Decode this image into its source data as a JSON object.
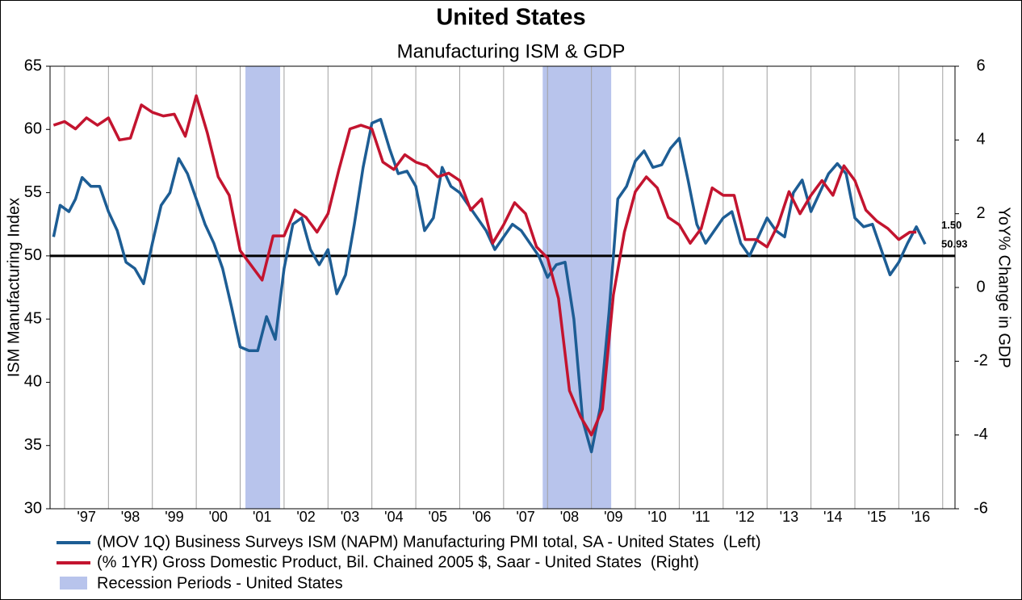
{
  "chart_data": {
    "type": "line",
    "title": "United States",
    "subtitle": "Manufacturing ISM & GDP",
    "y_label": "ISM Manufacturing Index",
    "y2_label": "YoY% Change in GDP",
    "xlim": [
      1996.67,
      2017.28
    ],
    "xticks": [
      {
        "value": 1997.5,
        "label": "'97"
      },
      {
        "value": 1998.5,
        "label": "'98"
      },
      {
        "value": 1999.5,
        "label": "'99"
      },
      {
        "value": 2000.5,
        "label": "'00"
      },
      {
        "value": 2001.5,
        "label": "'01"
      },
      {
        "value": 2002.5,
        "label": "'02"
      },
      {
        "value": 2003.5,
        "label": "'03"
      },
      {
        "value": 2004.5,
        "label": "'04"
      },
      {
        "value": 2005.5,
        "label": "'05"
      },
      {
        "value": 2006.5,
        "label": "'06"
      },
      {
        "value": 2007.5,
        "label": "'07"
      },
      {
        "value": 2008.5,
        "label": "'08"
      },
      {
        "value": 2009.5,
        "label": "'09"
      },
      {
        "value": 2010.5,
        "label": "'10"
      },
      {
        "value": 2011.5,
        "label": "'11"
      },
      {
        "value": 2012.5,
        "label": "'12"
      },
      {
        "value": 2013.5,
        "label": "'13"
      },
      {
        "value": 2014.5,
        "label": "'14"
      },
      {
        "value": 2015.5,
        "label": "'15"
      },
      {
        "value": 2016.5,
        "label": "'16"
      }
    ],
    "ylim": [
      30,
      65
    ],
    "yticks": [
      30,
      35,
      40,
      45,
      50,
      55,
      60,
      65
    ],
    "y2lim": [
      -6,
      6
    ],
    "y2ticks": [
      -6,
      -4,
      -2,
      0,
      2,
      4,
      6
    ],
    "grid": true,
    "reference_line": 50,
    "recession_label": "Recession Periods - United States",
    "recession_color": "#b8c4ec",
    "recessions": [
      [
        2001.12,
        2001.91
      ],
      [
        2007.89,
        2009.45
      ]
    ],
    "series": [
      {
        "name": "(MOV 1Q) Business Surveys ISM (NAPM) Manufacturing PMI total, SA - United States  (Left)",
        "color": "#1d5d94",
        "x": [
          1996.75,
          1996.9,
          1997.1,
          1997.25,
          1997.4,
          1997.6,
          1997.8,
          1998.0,
          1998.2,
          1998.4,
          1998.6,
          1998.8,
          1999.0,
          1999.2,
          1999.4,
          1999.6,
          1999.8,
          2000.0,
          2000.2,
          2000.4,
          2000.6,
          2000.8,
          2001.0,
          2001.2,
          2001.4,
          2001.6,
          2001.8,
          2002.0,
          2002.2,
          2002.4,
          2002.6,
          2002.8,
          2003.0,
          2003.2,
          2003.4,
          2003.6,
          2003.8,
          2004.0,
          2004.2,
          2004.4,
          2004.6,
          2004.8,
          2005.0,
          2005.2,
          2005.4,
          2005.6,
          2005.8,
          2006.0,
          2006.2,
          2006.4,
          2006.6,
          2006.8,
          2007.0,
          2007.2,
          2007.4,
          2007.6,
          2007.8,
          2008.0,
          2008.2,
          2008.4,
          2008.6,
          2008.8,
          2009.0,
          2009.2,
          2009.4,
          2009.6,
          2009.8,
          2010.0,
          2010.2,
          2010.4,
          2010.6,
          2010.8,
          2011.0,
          2011.2,
          2011.4,
          2011.6,
          2011.8,
          2012.0,
          2012.2,
          2012.4,
          2012.6,
          2012.8,
          2013.0,
          2013.2,
          2013.4,
          2013.6,
          2013.8,
          2014.0,
          2014.2,
          2014.4,
          2014.6,
          2014.8,
          2015.0,
          2015.2,
          2015.4,
          2015.6,
          2015.8,
          2016.0,
          2016.2,
          2016.4,
          2016.6
        ],
        "values": [
          51.5,
          54,
          53.5,
          54.5,
          56.2,
          55.5,
          55.5,
          53.5,
          52,
          49.5,
          49,
          47.8,
          51,
          54,
          55,
          57.7,
          56.5,
          54.5,
          52.5,
          51,
          49,
          46,
          42.8,
          42.5,
          42.5,
          45.2,
          43.4,
          49,
          52.5,
          53,
          50.5,
          49.3,
          50.5,
          47,
          48.5,
          52.5,
          57,
          60.5,
          60.8,
          58.5,
          56.5,
          56.7,
          55.5,
          52,
          53,
          57,
          55.5,
          55,
          54,
          53,
          52,
          50.5,
          51.5,
          52.5,
          52,
          51,
          50,
          48.3,
          49.3,
          49.5,
          45,
          37,
          34.5,
          38,
          45.5,
          54.5,
          55.5,
          57.5,
          58.3,
          57,
          57.2,
          58.5,
          59.3,
          56,
          52.5,
          51,
          52,
          53,
          53.5,
          51,
          50,
          51.5,
          53,
          52,
          51.5,
          55,
          56,
          53.5,
          55,
          56.5,
          57.3,
          56.5,
          53,
          52.3,
          52.5,
          50.5,
          48.5,
          49.5,
          51,
          52.3,
          50.93
        ],
        "value_labels": [
          null,
          null,
          null,
          null,
          null,
          null,
          null,
          null,
          null,
          null,
          null,
          null,
          null,
          null,
          null,
          null,
          null,
          null,
          null,
          null,
          null,
          null,
          null,
          null,
          null,
          null,
          null,
          null,
          null,
          null,
          null,
          null,
          null,
          null,
          null,
          null,
          null,
          null,
          null,
          null,
          null,
          null,
          null,
          null,
          null,
          null,
          null,
          null,
          null,
          null,
          null,
          null,
          null,
          null,
          null,
          null,
          null,
          null,
          null,
          null,
          null,
          null,
          null,
          null,
          null,
          null,
          null,
          null,
          null,
          null,
          null,
          null,
          null,
          null,
          null,
          null,
          null,
          null,
          null,
          null,
          null,
          null,
          null,
          null,
          null,
          null,
          null,
          null,
          null,
          null,
          null,
          null,
          null,
          null,
          null,
          null,
          null,
          null,
          null,
          null,
          "50.93"
        ]
      },
      {
        "name": "(% 1YR) Gross Domestic Product, Bil. Chained 2005 $, Saar - United States  (Right)",
        "color": "#c3142f",
        "axis": "y2",
        "x": [
          1996.75,
          1997.0,
          1997.25,
          1997.5,
          1997.75,
          1998.0,
          1998.25,
          1998.5,
          1998.75,
          1999.0,
          1999.25,
          1999.5,
          1999.75,
          2000.0,
          2000.25,
          2000.5,
          2000.75,
          2001.0,
          2001.25,
          2001.5,
          2001.75,
          2002.0,
          2002.25,
          2002.5,
          2002.75,
          2003.0,
          2003.25,
          2003.5,
          2003.75,
          2004.0,
          2004.25,
          2004.5,
          2004.75,
          2005.0,
          2005.25,
          2005.5,
          2005.75,
          2006.0,
          2006.25,
          2006.5,
          2006.75,
          2007.0,
          2007.25,
          2007.5,
          2007.75,
          2008.0,
          2008.25,
          2008.5,
          2008.75,
          2009.0,
          2009.25,
          2009.5,
          2009.75,
          2010.0,
          2010.25,
          2010.5,
          2010.75,
          2011.0,
          2011.25,
          2011.5,
          2011.75,
          2012.0,
          2012.25,
          2012.5,
          2012.75,
          2013.0,
          2013.25,
          2013.5,
          2013.75,
          2014.0,
          2014.25,
          2014.5,
          2014.75,
          2015.0,
          2015.25,
          2015.5,
          2015.75,
          2016.0,
          2016.25,
          2016.4
        ],
        "values": [
          4.4,
          4.5,
          4.3,
          4.6,
          4.4,
          4.6,
          4.0,
          4.05,
          4.95,
          4.75,
          4.65,
          4.7,
          4.1,
          5.2,
          4.2,
          3.0,
          2.5,
          1.0,
          0.6,
          0.2,
          1.4,
          1.4,
          2.1,
          1.9,
          1.5,
          2.0,
          3.2,
          4.3,
          4.4,
          4.3,
          3.4,
          3.2,
          3.6,
          3.4,
          3.3,
          3.0,
          3.1,
          2.9,
          2.1,
          2.4,
          1.2,
          1.7,
          2.3,
          2.0,
          1.1,
          0.8,
          -0.3,
          -2.8,
          -3.5,
          -4.0,
          -3.3,
          -0.2,
          1.5,
          2.6,
          3.0,
          2.7,
          1.9,
          1.7,
          1.2,
          1.6,
          2.7,
          2.5,
          2.5,
          1.3,
          1.3,
          1.1,
          1.7,
          2.6,
          2.0,
          2.5,
          2.9,
          2.5,
          3.3,
          2.9,
          2.1,
          1.8,
          1.6,
          1.3,
          1.5,
          1.5
        ],
        "value_labels": [
          null,
          null,
          null,
          null,
          null,
          null,
          null,
          null,
          null,
          null,
          null,
          null,
          null,
          null,
          null,
          null,
          null,
          null,
          null,
          null,
          null,
          null,
          null,
          null,
          null,
          null,
          null,
          null,
          null,
          null,
          null,
          null,
          null,
          null,
          null,
          null,
          null,
          null,
          null,
          null,
          null,
          null,
          null,
          null,
          null,
          null,
          null,
          null,
          null,
          null,
          null,
          null,
          null,
          null,
          null,
          null,
          null,
          null,
          null,
          null,
          null,
          null,
          null,
          null,
          null,
          null,
          null,
          null,
          null,
          null,
          null,
          null,
          null,
          null,
          null,
          null,
          null,
          null,
          null,
          "1.50"
        ]
      }
    ]
  }
}
